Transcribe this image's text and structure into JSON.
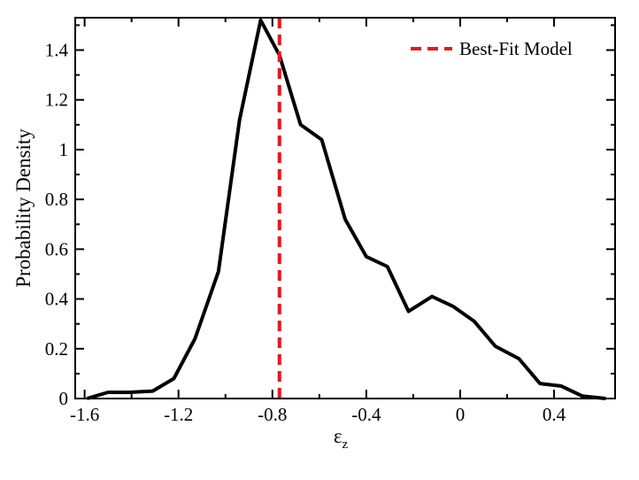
{
  "chart_data": {
    "type": "line",
    "xlabel": "ε",
    "xlabel_subscript": "z",
    "ylabel": "Probability Density",
    "xlim": [
      -1.64,
      0.66
    ],
    "ylim": [
      0,
      1.53
    ],
    "xticks": [
      -1.6,
      -1.2,
      -0.8,
      -0.4,
      0,
      0.4
    ],
    "xtick_labels": [
      "-1.6",
      "-1.2",
      "-0.8",
      "-0.4",
      "0",
      "0.4"
    ],
    "yticks": [
      0,
      0.2,
      0.4,
      0.6,
      0.8,
      1.0,
      1.2,
      1.4
    ],
    "ytick_labels": [
      "0",
      "0.2",
      "0.4",
      "0.6",
      "0.8",
      "1",
      "1.2",
      "1.4"
    ],
    "grid": false,
    "legend_position": "top-right",
    "series": [
      {
        "color": "#000000",
        "x": [
          -1.59,
          -1.5,
          -1.41,
          -1.31,
          -1.22,
          -1.13,
          -1.03,
          -0.94,
          -0.85,
          -0.77,
          -0.68,
          -0.59,
          -0.49,
          -0.4,
          -0.31,
          -0.22,
          -0.12,
          -0.03,
          0.06,
          0.15,
          0.25,
          0.34,
          0.43,
          0.52,
          0.62
        ],
        "y": [
          0.0,
          0.025,
          0.025,
          0.03,
          0.08,
          0.24,
          0.51,
          1.12,
          1.52,
          1.38,
          1.1,
          1.04,
          0.72,
          0.57,
          0.53,
          0.35,
          0.41,
          0.37,
          0.31,
          0.21,
          0.16,
          0.06,
          0.05,
          0.01,
          0.0
        ]
      }
    ],
    "reference_line": {
      "name": "Best-Fit Model",
      "x": -0.77,
      "color": "#e8161c",
      "style": "dashed"
    }
  }
}
